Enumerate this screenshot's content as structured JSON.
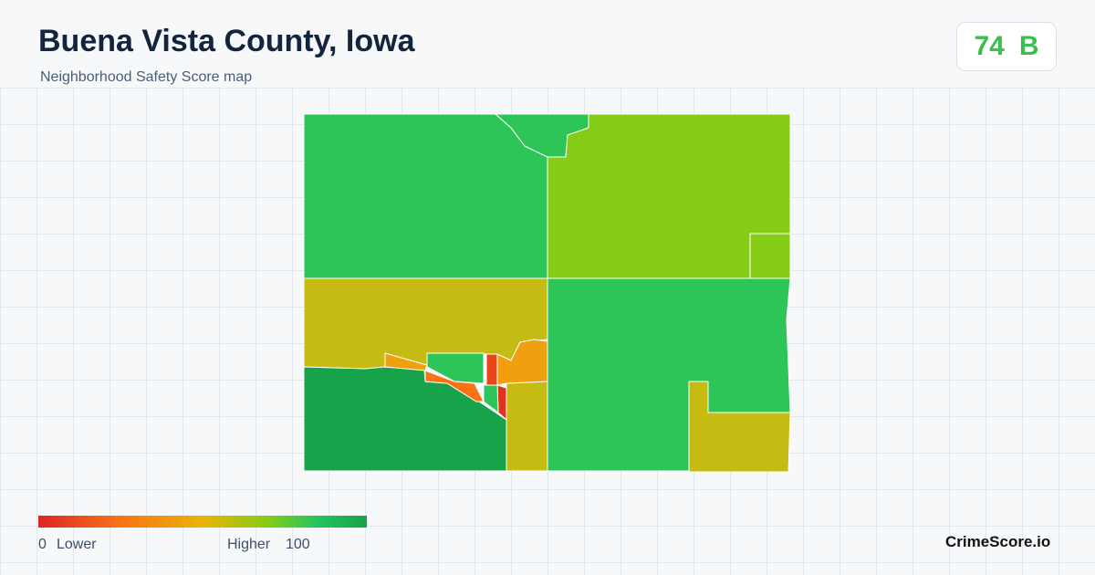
{
  "header": {
    "title": "Buena Vista County, Iowa",
    "subtitle": "Neighborhood Safety Score map"
  },
  "score": {
    "value": "74",
    "grade": "B"
  },
  "legend": {
    "min": "0",
    "min_label": "Lower",
    "max_label": "Higher",
    "max": "100"
  },
  "brand": "CrimeScore.io"
}
